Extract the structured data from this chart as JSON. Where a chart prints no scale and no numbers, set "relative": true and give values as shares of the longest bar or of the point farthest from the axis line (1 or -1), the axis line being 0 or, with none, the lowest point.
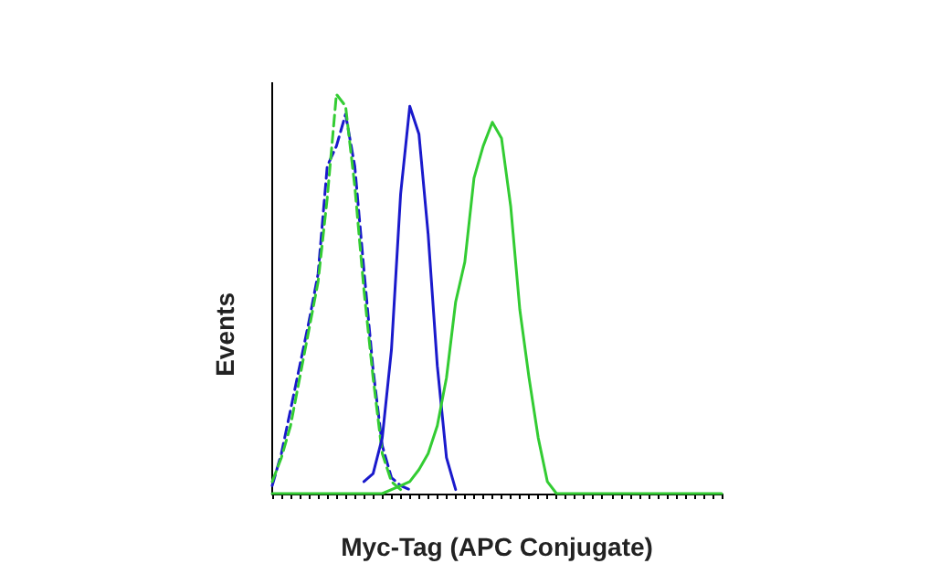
{
  "chart_data": {
    "type": "line",
    "relative": true,
    "xlabel": "Myc-Tag (APC Conjugate)",
    "ylabel": "Events",
    "categories": [
      null,
      null,
      null,
      null,
      null,
      null,
      null,
      null,
      null,
      null,
      null,
      null,
      null,
      null,
      null,
      null,
      null,
      null,
      null,
      null,
      null,
      null,
      null,
      null,
      null,
      null,
      null,
      null,
      null,
      null,
      null,
      null,
      null,
      null,
      null,
      null,
      null,
      null,
      null,
      null,
      null,
      null,
      null,
      null,
      null,
      null,
      null,
      null,
      null,
      null
    ],
    "series": [
      {
        "color": "#1a1acc",
        "line_style": "dashed",
        "values": [
          0.02,
          0.1,
          0.21,
          0.32,
          0.43,
          0.55,
          0.82,
          0.87,
          0.95,
          0.82,
          0.56,
          0.31,
          0.12,
          0.04,
          0.02,
          0.01,
          null,
          null,
          null,
          null,
          null,
          null,
          null,
          null,
          null,
          null,
          null,
          null,
          null,
          null,
          null,
          null,
          null,
          null,
          null,
          null,
          null,
          null,
          null,
          null,
          null,
          null,
          null,
          null,
          null,
          null,
          null,
          null,
          null,
          null
        ]
      },
      {
        "color": "#33cc33",
        "line_style": "dashed",
        "values": [
          0.03,
          0.09,
          0.17,
          0.29,
          0.41,
          0.53,
          0.74,
          1,
          0.97,
          0.77,
          0.51,
          0.29,
          0.1,
          0.03,
          0.01,
          null,
          null,
          null,
          null,
          null,
          null,
          null,
          null,
          null,
          null,
          null,
          null,
          null,
          null,
          null,
          null,
          null,
          null,
          null,
          null,
          null,
          null,
          null,
          null,
          null,
          null,
          null,
          null,
          null,
          null,
          null,
          null,
          null,
          null,
          null
        ]
      },
      {
        "color": "#1a1acc",
        "line_style": "solid",
        "values": [
          null,
          null,
          null,
          null,
          null,
          null,
          null,
          null,
          null,
          null,
          0.03,
          0.05,
          0.14,
          0.36,
          0.75,
          0.97,
          0.9,
          0.65,
          0.32,
          0.09,
          0.01,
          null,
          null,
          null,
          null,
          null,
          null,
          null,
          null,
          null,
          null,
          null,
          null,
          null,
          null,
          null,
          null,
          null,
          null,
          null,
          null,
          null,
          null,
          null,
          null,
          null,
          null,
          null,
          null,
          null
        ]
      },
      {
        "color": "#33cc33",
        "line_style": "solid",
        "values": [
          0,
          0,
          0,
          0,
          0,
          0,
          0,
          0,
          0,
          0,
          0,
          0,
          0,
          0.01,
          0.02,
          0.03,
          0.06,
          0.1,
          0.17,
          0.29,
          0.48,
          0.58,
          0.79,
          0.87,
          0.93,
          0.89,
          0.72,
          0.46,
          0.29,
          0.14,
          0.03,
          0,
          0,
          0,
          0,
          0,
          0,
          0,
          0,
          0,
          0,
          0,
          0,
          0,
          0,
          0,
          0,
          0,
          0,
          0
        ]
      }
    ]
  }
}
